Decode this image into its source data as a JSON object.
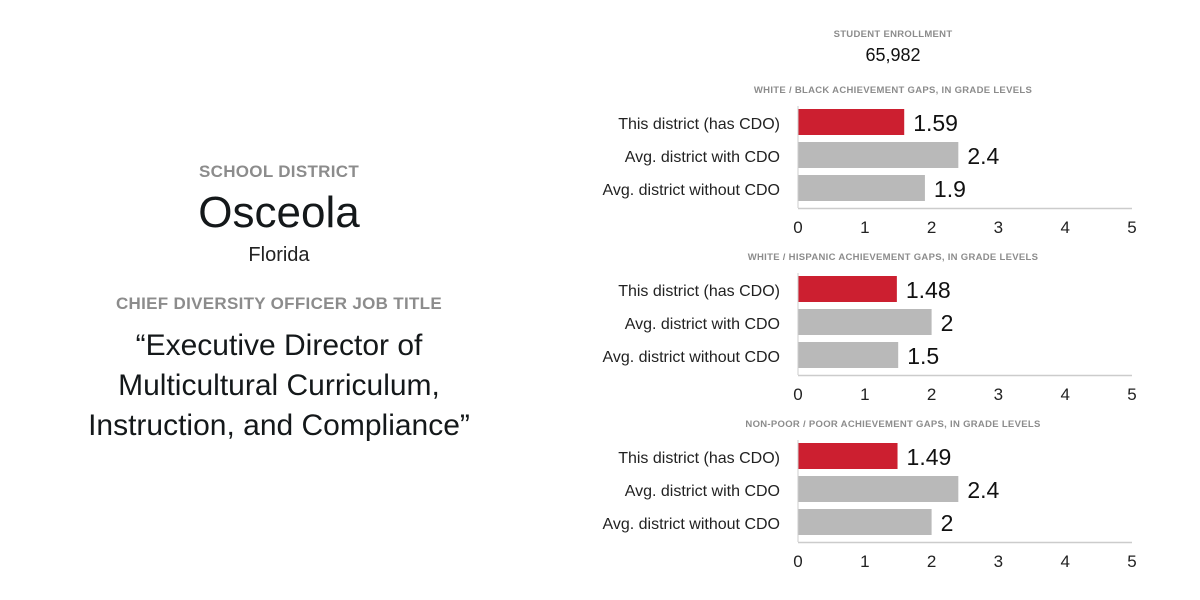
{
  "district": {
    "label": "SCHOOL DISTRICT",
    "name": "Osceola",
    "state": "Florida",
    "job_title_label": "CHIEF DIVERSITY OFFICER JOB TITLE",
    "job_title_lines": [
      "“Executive Director of",
      "Multicultural Curriculum,",
      "Instruction, and Compliance”"
    ]
  },
  "enrollment": {
    "label": "STUDENT ENROLLMENT",
    "value": "65,982"
  },
  "colors": {
    "highlight": "#cc1f30",
    "comparison": "#b9b9b9",
    "label_gray": "#8c8c8c"
  },
  "chart_data": [
    {
      "type": "bar",
      "orientation": "horizontal",
      "title": "WHITE / BLACK ACHIEVEMENT GAPS, IN GRADE LEVELS",
      "categories": [
        "This district (has CDO)",
        "Avg. district with CDO",
        "Avg. district without CDO"
      ],
      "values": [
        1.59,
        2.4,
        1.9
      ],
      "value_labels": [
        "1.59",
        "2.4",
        "1.9"
      ],
      "xlim": [
        0,
        5
      ],
      "xticks": [
        "0",
        "1",
        "2",
        "3",
        "4",
        "5"
      ],
      "grid": false
    },
    {
      "type": "bar",
      "orientation": "horizontal",
      "title": "WHITE / HISPANIC ACHIEVEMENT GAPS, IN GRADE LEVELS",
      "categories": [
        "This district (has CDO)",
        "Avg. district with CDO",
        "Avg. district without CDO"
      ],
      "values": [
        1.48,
        2,
        1.5
      ],
      "value_labels": [
        "1.48",
        "2",
        "1.5"
      ],
      "xlim": [
        0,
        5
      ],
      "xticks": [
        "0",
        "1",
        "2",
        "3",
        "4",
        "5"
      ],
      "grid": false
    },
    {
      "type": "bar",
      "orientation": "horizontal",
      "title": "NON-POOR / POOR ACHIEVEMENT GAPS, IN GRADE LEVELS",
      "categories": [
        "This district (has CDO)",
        "Avg. district with CDO",
        "Avg. district without CDO"
      ],
      "values": [
        1.49,
        2.4,
        2
      ],
      "value_labels": [
        "1.49",
        "2.4",
        "2"
      ],
      "xlim": [
        0,
        5
      ],
      "xticks": [
        "0",
        "1",
        "2",
        "3",
        "4",
        "5"
      ],
      "grid": false
    }
  ]
}
